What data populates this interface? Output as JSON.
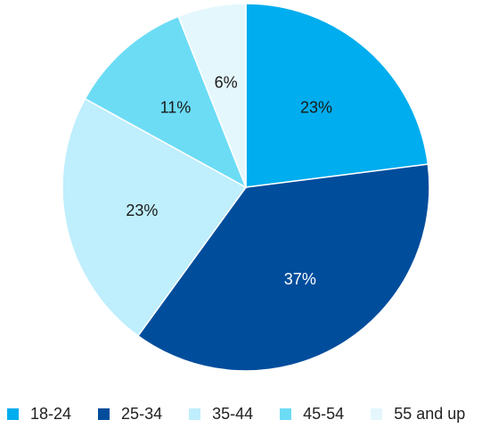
{
  "chart_data": {
    "type": "pie",
    "title": "",
    "categories": [
      "18-24",
      "25-34",
      "35-44",
      "45-54",
      "55 and up"
    ],
    "values": [
      23,
      37,
      23,
      11,
      6
    ],
    "labels": [
      "23%",
      "37%",
      "23%",
      "11%",
      "6%"
    ],
    "colors": [
      "#00adee",
      "#004d9c",
      "#bfeefc",
      "#6cdcf5",
      "#e4f7fd"
    ],
    "label_colors": [
      "#1a1a1a",
      "#ffffff",
      "#1a1a1a",
      "#1a1a1a",
      "#1a1a1a"
    ],
    "start": "12 o'clock",
    "direction": "clockwise",
    "legend_position": "bottom"
  },
  "legend": [
    {
      "label": "18-24",
      "color": "#00adee"
    },
    {
      "label": "25-34",
      "color": "#004d9c"
    },
    {
      "label": "35-44",
      "color": "#bfeefc"
    },
    {
      "label": "45-54",
      "color": "#6cdcf5"
    },
    {
      "label": "55 and up",
      "color": "#e4f7fd"
    }
  ]
}
